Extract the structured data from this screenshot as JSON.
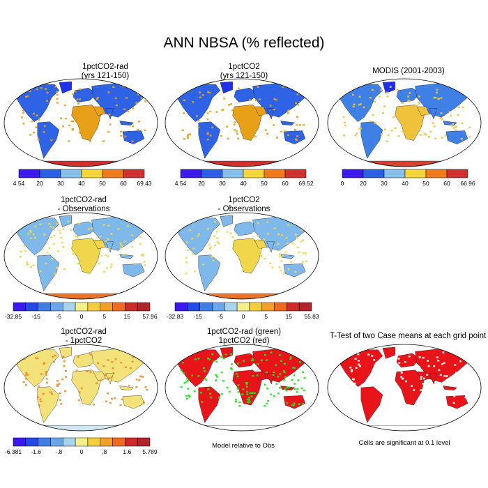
{
  "page_title": "ANN NBSA (% reflected)",
  "panels": [
    {
      "id": "p1",
      "title_line1": "1pctCO2-rad",
      "title_line2": "(yrs 121-150)",
      "scheme": "abs",
      "ocean": "#1f31e8",
      "land": "#2d63e4",
      "spots": "#e8a018",
      "antarctica": "#d2302f"
    },
    {
      "id": "p2",
      "title_line1": "1pctCO2",
      "title_line2": "(yrs 121-150)",
      "scheme": "abs",
      "ocean": "#1f31e8",
      "land": "#2d63e4",
      "spots": "#e8a018",
      "antarctica": "#d2302f"
    },
    {
      "id": "p3",
      "title_line1": "MODIS (2001-2003)",
      "title_line2": "",
      "scheme": "abs",
      "ocean": "#3a73e6",
      "land": "#3f80e6",
      "spots": "#f0c23a",
      "antarctica": "#d9412f"
    },
    {
      "id": "p4",
      "title_line1": "1pctCO2-rad",
      "title_line2": "- Observations",
      "scheme": "diff",
      "ocean": "#7fb8ea",
      "land": "#7fb8ea",
      "spots": "#f0d64b",
      "antarctica": "#e8742a"
    },
    {
      "id": "p5",
      "title_line1": "1pctCO2",
      "title_line2": "- Observations",
      "scheme": "diff",
      "ocean": "#7fb8ea",
      "land": "#7fb8ea",
      "spots": "#f0d64b",
      "antarctica": "#e8742a"
    },
    {
      "id": "p7",
      "title_line1": "1pctCO2-rad",
      "title_line2": "- 1pctCO2",
      "scheme": "diff2",
      "ocean": "#b7dbef",
      "land": "#f3e27a",
      "spots": "#f08a2a",
      "antarctica": "#cfe8f4"
    },
    {
      "id": "p8",
      "title_line1": "1pctCO2-rad (green)",
      "title_line2": "1pctCO2 (red)",
      "scheme": "rg",
      "ocean": "#ffffff",
      "land": "#e8141a",
      "spots": "#1ee61a",
      "antarctica": "#ffffff"
    },
    {
      "id": "p9",
      "title_line1": "T-Test of two Case means at each grid point",
      "title_line2": "",
      "scheme": "tt",
      "ocean": "#ffffff",
      "land": "#e8141a",
      "spots": "#ffffff",
      "antarctica": "#ffffff"
    }
  ],
  "colorbars": [
    {
      "id": "cb1",
      "colors": [
        "#3b19f0",
        "#2a5fe6",
        "#86c0ea",
        "#f5d53a",
        "#f07a1c",
        "#d2302f"
      ],
      "labels": [
        "4.54",
        "20",
        "30",
        "40",
        "50",
        "60",
        "69.43"
      ]
    },
    {
      "id": "cb2",
      "colors": [
        "#3b19f0",
        "#2a5fe6",
        "#86c0ea",
        "#f5d53a",
        "#f07a1c",
        "#d2302f"
      ],
      "labels": [
        "4.54",
        "20",
        "30",
        "40",
        "50",
        "60",
        "69.52"
      ]
    },
    {
      "id": "cb3",
      "colors": [
        "#3b19f0",
        "#2a5fe6",
        "#86c0ea",
        "#f5d53a",
        "#f07a1c",
        "#d2302f"
      ],
      "labels": [
        "0",
        "20",
        "30",
        "40",
        "50",
        "60",
        "66.96"
      ]
    },
    {
      "id": "cb4",
      "colors": [
        "#3b19f0",
        "#2449e6",
        "#3f7fe6",
        "#6aa7ea",
        "#a9d4ee",
        "#f2ef8c",
        "#f5cf3b",
        "#f3a02a",
        "#ef6b1f",
        "#cf2a2a",
        "#b3232a"
      ],
      "labels": [
        "-32.85",
        "-15",
        "-5",
        "0",
        "5",
        "15",
        "57.96"
      ]
    },
    {
      "id": "cb5",
      "colors": [
        "#3b19f0",
        "#2449e6",
        "#3f7fe6",
        "#6aa7ea",
        "#a9d4ee",
        "#f2ef8c",
        "#f5cf3b",
        "#f3a02a",
        "#ef6b1f",
        "#cf2a2a",
        "#b3232a"
      ],
      "labels": [
        "-32.83",
        "-15",
        "-5",
        "0",
        "5",
        "15",
        "55.83"
      ]
    },
    {
      "id": "cb7",
      "colors": [
        "#3b19f0",
        "#2449e6",
        "#3f7fe6",
        "#6aa7ea",
        "#a9d4ee",
        "#f2ef8c",
        "#f5cf3b",
        "#f3a02a",
        "#ef6b1f",
        "#cf2a2a",
        "#b3232a"
      ],
      "labels": [
        "-6.381",
        "-1.6",
        "-.8",
        "0",
        ".8",
        "1.6",
        "5.789"
      ]
    }
  ],
  "notes": {
    "model_relative": "Model relative to Obs",
    "significance": "Cells are significant at 0.1 level"
  }
}
